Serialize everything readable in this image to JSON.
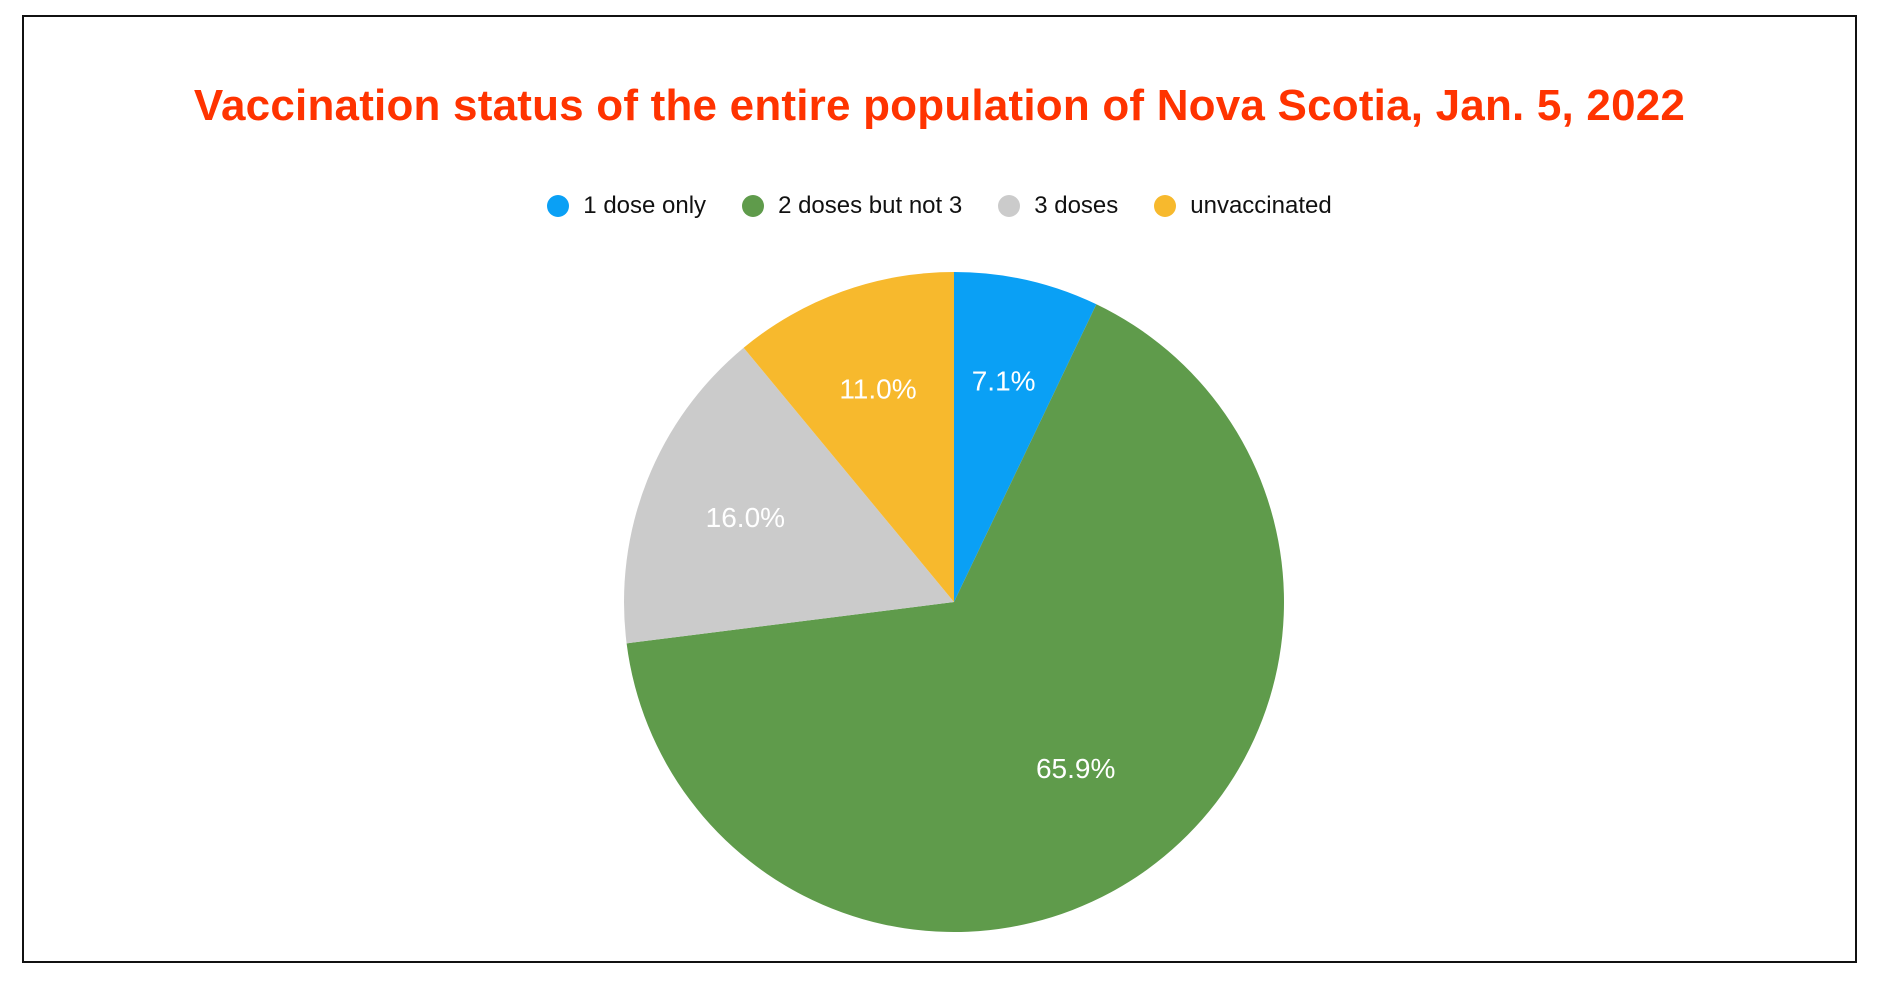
{
  "chart_data": {
    "type": "pie",
    "title": "Vaccination status of the entire population of Nova Scotia, Jan. 5, 2022",
    "legend_position": "top",
    "start_angle_deg": 0,
    "direction": "clockwise",
    "slices": [
      {
        "label": "1 dose only",
        "value": 7.1,
        "value_label": "7.1%",
        "color": "#0aa0f5"
      },
      {
        "label": "2 doses but not 3",
        "value": 65.9,
        "value_label": "65.9%",
        "color": "#5f9b4b"
      },
      {
        "label": "3 doses",
        "value": 16.0,
        "value_label": "16.0%",
        "color": "#cbcbcb"
      },
      {
        "label": "unvaccinated",
        "value": 11.0,
        "value_label": "11.0%",
        "color": "#f7b92d"
      }
    ]
  }
}
